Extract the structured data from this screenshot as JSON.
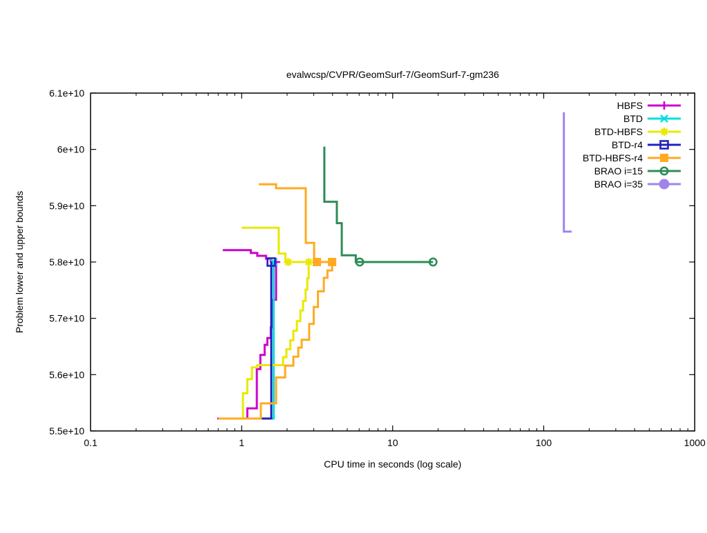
{
  "chart_data": {
    "type": "line",
    "title": "evalwcsp/CVPR/GeomSurf-7/GeomSurf-7-gm236",
    "xlabel": "CPU time in seconds (log scale)",
    "ylabel": "Problem lower and upper bounds",
    "x_scale": "log",
    "xlim": [
      0.1,
      1000
    ],
    "ylim": [
      55000000000.0,
      61000000000.0
    ],
    "grid": "off",
    "legend_position": "top-right-inside",
    "x_ticks": {
      "values": [
        0.1,
        1,
        10,
        100,
        1000
      ],
      "labels": [
        "0.1",
        "1",
        "10",
        "100",
        "1000"
      ]
    },
    "y_ticks": {
      "values": [
        55000000000.0,
        56000000000.0,
        57000000000.0,
        58000000000.0,
        59000000000.0,
        60000000000.0,
        61000000000.0
      ],
      "labels": [
        "5.5e+10",
        "5.6e+10",
        "5.7e+10",
        "5.8e+10",
        "5.9e+10",
        "6e+10",
        "6.1e+10"
      ]
    },
    "optimum_value": 58000000000.0,
    "series": [
      {
        "name": "HBFS",
        "color": "#cc00cc",
        "marker": "plus",
        "segments": [
          [
            [
              0.75,
              58210000000.0
            ],
            [
              1.15,
              58210000000.0
            ],
            [
              1.15,
              58160000000.0
            ],
            [
              1.27,
              58160000000.0
            ],
            [
              1.27,
              58110000000.0
            ],
            [
              1.45,
              58110000000.0
            ],
            [
              1.45,
              58060000000.0
            ],
            [
              1.56,
              58060000000.0
            ],
            [
              1.56,
              58010000000.0
            ],
            [
              1.69,
              58010000000.0
            ]
          ],
          [
            [
              0.69,
              55220000000.0
            ],
            [
              1.09,
              55220000000.0
            ],
            [
              1.09,
              55400000000.0
            ],
            [
              1.26,
              55400000000.0
            ],
            [
              1.26,
              56100000000.0
            ],
            [
              1.33,
              56100000000.0
            ],
            [
              1.33,
              56350000000.0
            ],
            [
              1.42,
              56350000000.0
            ],
            [
              1.42,
              56530000000.0
            ],
            [
              1.48,
              56530000000.0
            ],
            [
              1.48,
              56650000000.0
            ],
            [
              1.56,
              56650000000.0
            ],
            [
              1.56,
              56840000000.0
            ],
            [
              1.62,
              56840000000.0
            ],
            [
              1.62,
              57330000000.0
            ],
            [
              1.69,
              57330000000.0
            ],
            [
              1.69,
              58000000000.0
            ]
          ]
        ],
        "markers_at": [
          [
            1.69,
            58000000000.0
          ]
        ]
      },
      {
        "name": "BTD",
        "color": "#00dede",
        "marker": "cross",
        "segments": [
          [
            [
              1.38,
              55220000000.0
            ],
            [
              1.63,
              55220000000.0
            ],
            [
              1.63,
              58000000000.0
            ]
          ]
        ],
        "markers_at": [
          [
            1.63,
            58000000000.0
          ]
        ]
      },
      {
        "name": "BTD-HBFS",
        "color": "#e8e800",
        "marker": "asterisk",
        "segments": [
          [
            [
              1.0,
              58610000000.0
            ],
            [
              1.76,
              58610000000.0
            ],
            [
              1.76,
              58150000000.0
            ],
            [
              1.95,
              58150000000.0
            ],
            [
              1.95,
              58000000000.0
            ],
            [
              4.0,
              58000000000.0
            ]
          ],
          [
            [
              1.02,
              55220000000.0
            ],
            [
              1.02,
              55670000000.0
            ],
            [
              1.09,
              55670000000.0
            ],
            [
              1.09,
              55920000000.0
            ],
            [
              1.17,
              55920000000.0
            ],
            [
              1.17,
              56130000000.0
            ],
            [
              1.27,
              56130000000.0
            ],
            [
              1.27,
              56170000000.0
            ],
            [
              1.88,
              56170000000.0
            ],
            [
              1.88,
              56310000000.0
            ],
            [
              1.98,
              56310000000.0
            ],
            [
              1.98,
              56450000000.0
            ],
            [
              2.1,
              56450000000.0
            ],
            [
              2.1,
              56610000000.0
            ],
            [
              2.2,
              56610000000.0
            ],
            [
              2.2,
              56780000000.0
            ],
            [
              2.32,
              56780000000.0
            ],
            [
              2.32,
              56950000000.0
            ],
            [
              2.45,
              56950000000.0
            ],
            [
              2.45,
              57140000000.0
            ],
            [
              2.55,
              57140000000.0
            ],
            [
              2.55,
              57310000000.0
            ],
            [
              2.65,
              57310000000.0
            ],
            [
              2.65,
              57510000000.0
            ],
            [
              2.72,
              57510000000.0
            ],
            [
              2.72,
              57710000000.0
            ],
            [
              2.78,
              57710000000.0
            ],
            [
              2.78,
              58000000000.0
            ]
          ]
        ],
        "markers_at": [
          [
            2.03,
            58000000000.0
          ],
          [
            2.78,
            58000000000.0
          ]
        ]
      },
      {
        "name": "BTD-r4",
        "color": "#2222bb",
        "marker": "open-square",
        "segments": [
          [
            [
              1.34,
              55220000000.0
            ],
            [
              1.57,
              55220000000.0
            ],
            [
              1.57,
              58000000000.0
            ]
          ]
        ],
        "markers_at": [
          [
            1.57,
            58000000000.0
          ]
        ]
      },
      {
        "name": "BTD-HBFS-r4",
        "color": "#ffaa22",
        "marker": "filled-square",
        "segments": [
          [
            [
              1.3,
              59380000000.0
            ],
            [
              1.69,
              59380000000.0
            ],
            [
              1.69,
              59310000000.0
            ],
            [
              2.66,
              59310000000.0
            ],
            [
              2.66,
              58340000000.0
            ],
            [
              3.02,
              58340000000.0
            ],
            [
              3.02,
              58000000000.0
            ],
            [
              3.97,
              58000000000.0
            ]
          ],
          [
            [
              0.7,
              55220000000.0
            ],
            [
              1.34,
              55220000000.0
            ],
            [
              1.34,
              55490000000.0
            ],
            [
              1.69,
              55490000000.0
            ],
            [
              1.69,
              55950000000.0
            ],
            [
              1.94,
              55950000000.0
            ],
            [
              1.94,
              56160000000.0
            ],
            [
              2.2,
              56160000000.0
            ],
            [
              2.2,
              56320000000.0
            ],
            [
              2.37,
              56320000000.0
            ],
            [
              2.37,
              56480000000.0
            ],
            [
              2.5,
              56480000000.0
            ],
            [
              2.5,
              56620000000.0
            ],
            [
              2.8,
              56620000000.0
            ],
            [
              2.8,
              56900000000.0
            ],
            [
              3.0,
              56900000000.0
            ],
            [
              3.0,
              57200000000.0
            ],
            [
              3.2,
              57200000000.0
            ],
            [
              3.2,
              57480000000.0
            ],
            [
              3.5,
              57480000000.0
            ],
            [
              3.5,
              57720000000.0
            ],
            [
              3.7,
              57720000000.0
            ],
            [
              3.7,
              57850000000.0
            ],
            [
              3.97,
              57850000000.0
            ],
            [
              3.97,
              58000000000.0
            ]
          ]
        ],
        "markers_at": [
          [
            3.15,
            58000000000.0
          ],
          [
            3.97,
            58000000000.0
          ]
        ]
      },
      {
        "name": "BRAO i=15",
        "color": "#2e8b57",
        "marker": "open-circle",
        "segments": [
          [
            [
              3.53,
              60050000000.0
            ],
            [
              3.53,
              59070000000.0
            ],
            [
              4.27,
              59070000000.0
            ],
            [
              4.27,
              58690000000.0
            ],
            [
              4.6,
              58690000000.0
            ],
            [
              4.6,
              58120000000.0
            ],
            [
              5.7,
              58120000000.0
            ],
            [
              5.7,
              58000000000.0
            ],
            [
              18.5,
              58000000000.0
            ]
          ]
        ],
        "markers_at": [
          [
            6.05,
            58000000000.0
          ],
          [
            18.5,
            58000000000.0
          ]
        ]
      },
      {
        "name": "BRAO i=35",
        "color": "#a082ee",
        "marker": "filled-circle",
        "segments": [
          [
            [
              136,
              60660000000.0
            ],
            [
              136,
              58540000000.0
            ],
            [
              153,
              58540000000.0
            ]
          ]
        ],
        "markers_at": []
      }
    ]
  }
}
